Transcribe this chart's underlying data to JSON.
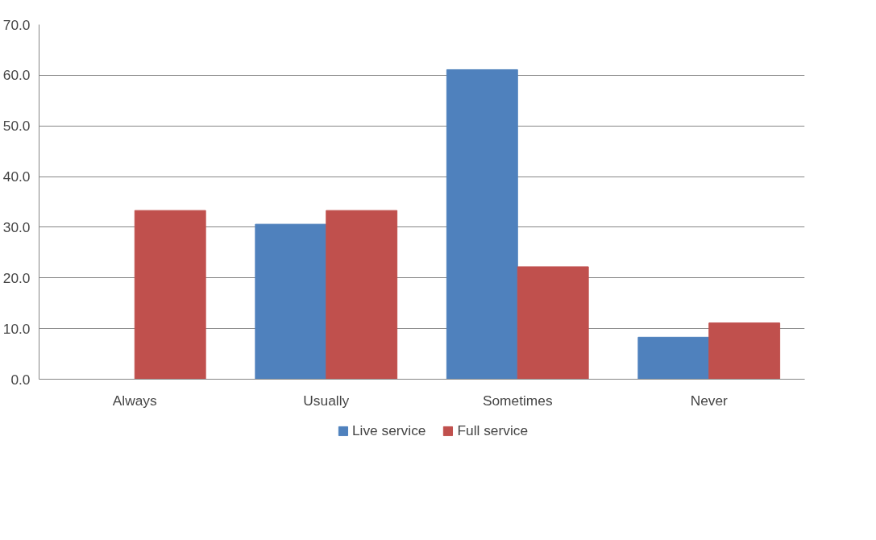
{
  "chart_data": {
    "type": "bar",
    "categories": [
      "Always",
      "Usually",
      "Sometimes",
      "Never"
    ],
    "series": [
      {
        "name": "Live service",
        "color": "#4f81bd",
        "values": [
          0,
          30.6,
          61.1,
          8.3
        ]
      },
      {
        "name": "Full service",
        "color": "#c0504d",
        "values": [
          33.3,
          33.3,
          22.2,
          11.1
        ]
      }
    ],
    "ylim": [
      0,
      70
    ],
    "yticks": [
      {
        "value": 0,
        "label": "0.0"
      },
      {
        "value": 10,
        "label": "10.0"
      },
      {
        "value": 20,
        "label": "20.0"
      },
      {
        "value": 30,
        "label": "30.0"
      },
      {
        "value": 40,
        "label": "40.0"
      },
      {
        "value": 50,
        "label": "50.0"
      },
      {
        "value": 60,
        "label": "60.0"
      },
      {
        "value": 70,
        "label": "70.0"
      }
    ],
    "grid": "y",
    "legend": "bottom"
  }
}
